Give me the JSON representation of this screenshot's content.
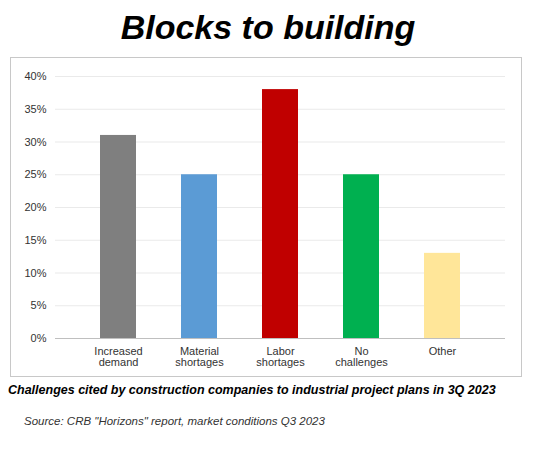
{
  "chart_data": {
    "type": "bar",
    "title": "Blocks to building",
    "subtitle": "Challenges cited by construction companies to industrial project plans in 3Q 2023",
    "source": "Source: CRB \"Horizons\" report, market conditions Q3 2023",
    "categories": [
      "Increased demand",
      "Material shortages",
      "Labor shortages",
      "No challenges",
      "Other"
    ],
    "values": [
      31,
      25,
      38,
      25,
      13
    ],
    "colors": [
      "#7f7f7f",
      "#5b9bd5",
      "#c00000",
      "#00b050",
      "#ffe699"
    ],
    "ylim": [
      0,
      40
    ],
    "yticks": [
      {
        "value": 0,
        "label": "0%"
      },
      {
        "value": 5,
        "label": "5%"
      },
      {
        "value": 10,
        "label": "10%"
      },
      {
        "value": 15,
        "label": "15%"
      },
      {
        "value": 20,
        "label": "20%"
      },
      {
        "value": 25,
        "label": "25%"
      },
      {
        "value": 30,
        "label": "30%"
      },
      {
        "value": 35,
        "label": "35%"
      },
      {
        "value": 40,
        "label": "40%"
      }
    ],
    "grid": true
  }
}
